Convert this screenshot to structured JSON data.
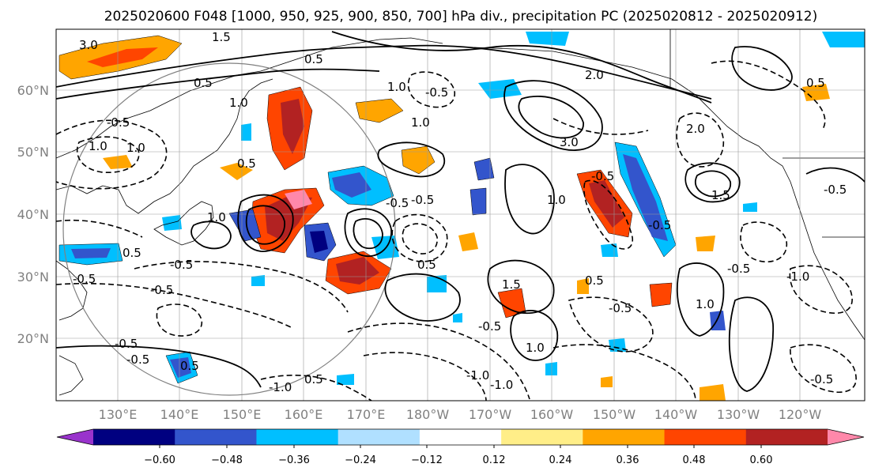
{
  "title": "2025020600 F048 [1000, 950, 925, 900, 850, 700] hPa div., precipitation PC (2025020812 - 2025020912)",
  "lon_ticks": [
    "130°E",
    "140°E",
    "150°E",
    "160°E",
    "170°E",
    "180°W",
    "170°W",
    "160°W",
    "150°W",
    "140°W",
    "130°W",
    "120°W"
  ],
  "lat_ticks": [
    "60°N",
    "50°N",
    "40°N",
    "30°N",
    "20°N"
  ],
  "colorbar": {
    "ticks": [
      "−0.60",
      "−0.48",
      "−0.36",
      "−0.24",
      "−0.12",
      "0.12",
      "0.24",
      "0.36",
      "0.48",
      "0.60"
    ],
    "colors": [
      "#9933cc",
      "#000080",
      "#3355cc",
      "#00bfff",
      "#b0e0ff",
      "#ffffff",
      "#ffee88",
      "#ffa500",
      "#ff4500",
      "#b22222",
      "#ff88aa"
    ]
  },
  "contour_labels": [
    "1.5",
    "0.5",
    "1.0",
    "-0.5",
    "2.0",
    "3.0",
    "-0.5",
    "1.0",
    "-0.5",
    "1.5",
    "-0.5",
    "1.0",
    "-0.5",
    "0.5",
    "-1.0",
    "-0.5",
    "1.0",
    "-0.5",
    "0.5",
    "-0.5",
    "-1.0",
    "0.5",
    "-0.5",
    "1.0",
    "1.5",
    "-0.5",
    "0.5",
    "-1.0",
    "1.0",
    "2.0",
    "3.0",
    "-0.5",
    "-0.5",
    "1.0",
    "1.0",
    "0.5",
    "-0.5",
    "0.5",
    "-0.5",
    "1.0",
    "-1.0",
    "0.5",
    "-0.5",
    "0.5",
    "-0.5"
  ],
  "colors": {
    "land": "#000000",
    "grid": "#999999",
    "circle": "#808080"
  }
}
